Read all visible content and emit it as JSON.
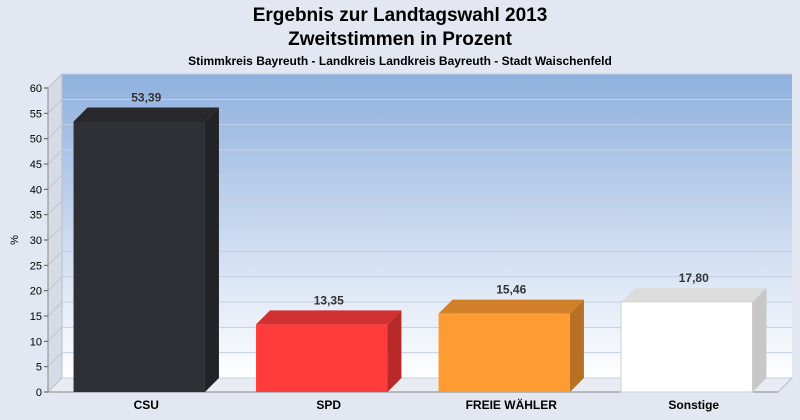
{
  "title": "Ergebnis zur Landtagswahl 2013",
  "subtitle": "Zweitstimmen in Prozent",
  "subsubtitle": "Stimmkreis Bayreuth - Landkreis Landkreis Bayreuth - Stadt Waischenfeld",
  "chart_data": {
    "type": "bar",
    "categories": [
      "CSU",
      "SPD",
      "FREIE WÄHLER",
      "Sonstige"
    ],
    "values": [
      53.39,
      13.35,
      15.46,
      17.8
    ],
    "value_labels": [
      "53,39",
      "13,35",
      "15,46",
      "17,80"
    ],
    "colors": [
      "#2f3036",
      "#ff3b3b",
      "#ff9b33",
      "#ffffff"
    ],
    "title": "Ergebnis zur Landtagswahl 2013",
    "subtitle": "Zweitstimmen in Prozent",
    "xlabel": "",
    "ylabel": "%",
    "ylim": [
      0,
      60
    ],
    "yticks": [
      0,
      5,
      10,
      15,
      20,
      25,
      30,
      35,
      40,
      45,
      50,
      55,
      60
    ],
    "grid": true,
    "legend": "none"
  }
}
